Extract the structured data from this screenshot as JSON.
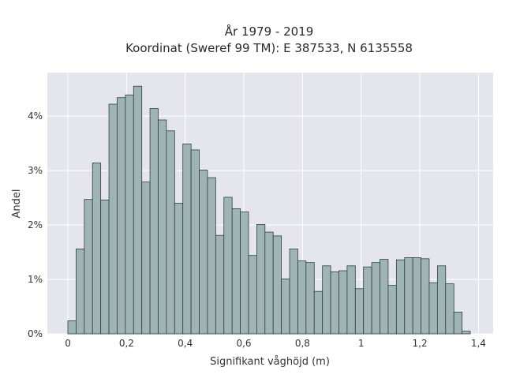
{
  "chart_data": {
    "type": "bar",
    "title": "År 1979 - 2019",
    "subtitle": "Koordinat (Sweref 99 TM): E 387533, N 6135558",
    "xlabel": "Signifikant våghöjd (m)",
    "ylabel": "Andel",
    "bin_width": 0.028,
    "bin_start": 0.0,
    "values": [
      0.24,
      1.56,
      2.47,
      3.14,
      2.46,
      4.22,
      4.34,
      4.39,
      4.55,
      2.79,
      4.14,
      3.93,
      3.73,
      2.4,
      3.49,
      3.38,
      3.01,
      2.87,
      1.81,
      2.51,
      2.3,
      2.24,
      1.44,
      2.01,
      1.87,
      1.8,
      1.01,
      1.56,
      1.34,
      1.31,
      0.78,
      1.25,
      1.14,
      1.16,
      1.25,
      0.83,
      1.23,
      1.31,
      1.37,
      0.89,
      1.36,
      1.4,
      1.4,
      1.38,
      0.94,
      1.25,
      0.92,
      0.4,
      0.05
    ],
    "xlim": [
      -0.07,
      1.45
    ],
    "ylim": [
      0,
      4.8
    ],
    "xticks": [
      0,
      0.2,
      0.4,
      0.6,
      0.8,
      1,
      1.2,
      1.4
    ],
    "xtick_labels": [
      "0",
      "0,2",
      "0,4",
      "0,6",
      "0,8",
      "1",
      "1,2",
      "1,4"
    ],
    "yticks": [
      0,
      1,
      2,
      3,
      4
    ],
    "ytick_labels": [
      "0%",
      "1%",
      "2%",
      "3%",
      "4%"
    ],
    "grid": true,
    "colors": {
      "bar_fill": "#9fb5b5",
      "bar_edge": "#2f3f3f",
      "plot_bg": "#e5e5ed",
      "grid": "#ffffff"
    }
  }
}
